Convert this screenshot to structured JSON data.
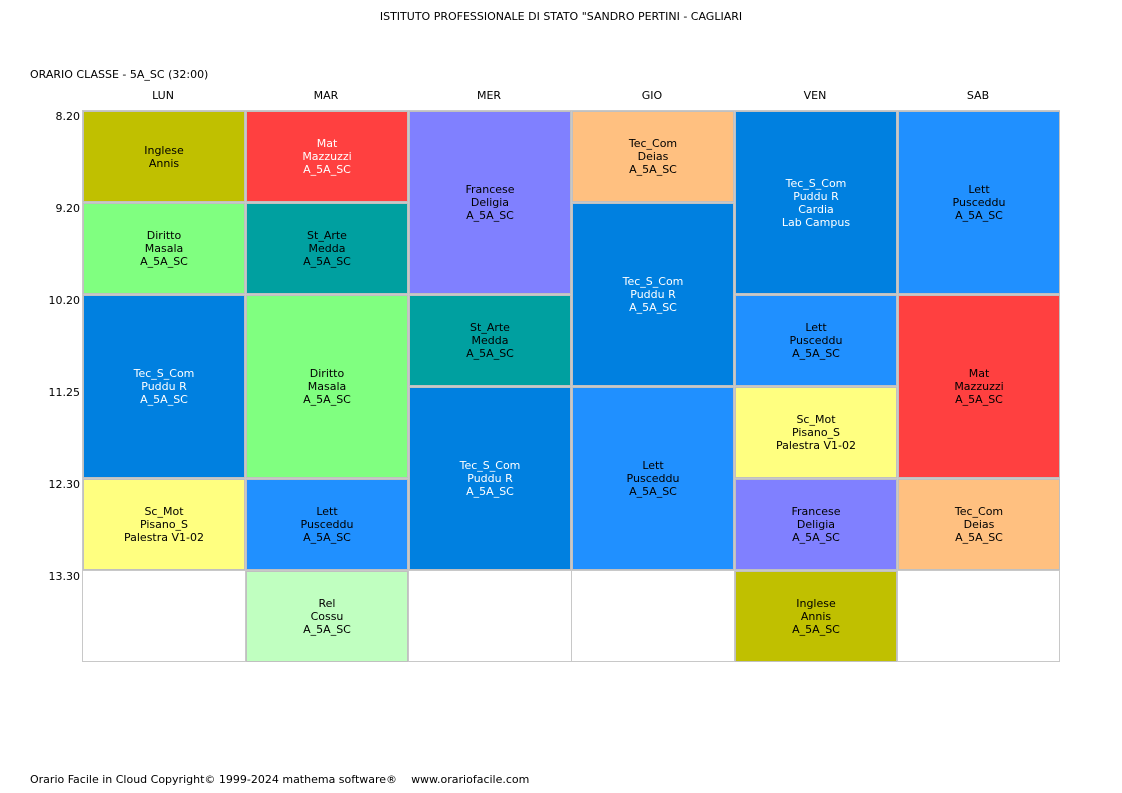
{
  "header": {
    "school": "ISTITUTO PROFESSIONALE DI STATO \"SANDRO PERTINI - CAGLIARI",
    "class_title": "ORARIO CLASSE   -   5A_SC  (32:00)"
  },
  "days": [
    "LUN",
    "MAR",
    "MER",
    "GIO",
    "VEN",
    "SAB"
  ],
  "times": [
    "8.20",
    "9.20",
    "10.20",
    "11.25",
    "12.30",
    "13.30"
  ],
  "colors": {
    "inglese": "#c0c000",
    "mat": "#ff4040",
    "francese": "#8080ff",
    "tec_com": "#ffc080",
    "tec_s_com": "#0080e0",
    "lett": "#2090ff",
    "diritto": "#80ff80",
    "st_arte": "#00a0a0",
    "sc_mot": "#ffff80",
    "rel": "#c0ffc0"
  },
  "lessons": [
    {
      "day": 0,
      "start": 0,
      "len": 1,
      "color": "#c0c000",
      "lines": [
        "Inglese",
        "Annis"
      ]
    },
    {
      "day": 0,
      "start": 1,
      "len": 1,
      "color": "#80ff80",
      "lines": [
        "Diritto",
        "Masala",
        "A_5A_SC"
      ]
    },
    {
      "day": 0,
      "start": 2,
      "len": 2,
      "color": "#0080e0",
      "text_color": "#ffffff",
      "lines": [
        "Tec_S_Com",
        "Puddu R",
        "A_5A_SC"
      ]
    },
    {
      "day": 0,
      "start": 4,
      "len": 1,
      "color": "#ffff80",
      "lines": [
        "Sc_Mot",
        "Pisano_S",
        "Palestra V1-02"
      ]
    },
    {
      "day": 1,
      "start": 0,
      "len": 1,
      "color": "#ff4040",
      "text_color": "#ffffff",
      "lines": [
        "Mat",
        "Mazzuzzi",
        "A_5A_SC"
      ]
    },
    {
      "day": 1,
      "start": 1,
      "len": 1,
      "color": "#00a0a0",
      "lines": [
        "St_Arte",
        "Medda",
        "A_5A_SC"
      ]
    },
    {
      "day": 1,
      "start": 2,
      "len": 2,
      "color": "#80ff80",
      "lines": [
        "Diritto",
        "Masala",
        "A_5A_SC"
      ]
    },
    {
      "day": 1,
      "start": 4,
      "len": 1,
      "color": "#2090ff",
      "lines": [
        "Lett",
        "Pusceddu",
        "A_5A_SC"
      ]
    },
    {
      "day": 1,
      "start": 5,
      "len": 1,
      "color": "#c0ffc0",
      "lines": [
        "Rel",
        "Cossu",
        "A_5A_SC"
      ]
    },
    {
      "day": 2,
      "start": 0,
      "len": 2,
      "color": "#8080ff",
      "lines": [
        "Francese",
        "Deligia",
        "A_5A_SC"
      ]
    },
    {
      "day": 2,
      "start": 2,
      "len": 1,
      "color": "#00a0a0",
      "lines": [
        "St_Arte",
        "Medda",
        "A_5A_SC"
      ]
    },
    {
      "day": 2,
      "start": 3,
      "len": 2,
      "color": "#0080e0",
      "text_color": "#ffffff",
      "lines": [
        "Tec_S_Com",
        "Puddu R",
        "A_5A_SC"
      ]
    },
    {
      "day": 3,
      "start": 0,
      "len": 1,
      "color": "#ffc080",
      "lines": [
        "Tec_Com",
        "Deias",
        "A_5A_SC"
      ]
    },
    {
      "day": 3,
      "start": 1,
      "len": 2,
      "color": "#0080e0",
      "text_color": "#ffffff",
      "lines": [
        "Tec_S_Com",
        "Puddu R",
        "A_5A_SC"
      ]
    },
    {
      "day": 3,
      "start": 3,
      "len": 2,
      "color": "#2090ff",
      "lines": [
        "Lett",
        "Pusceddu",
        "A_5A_SC"
      ]
    },
    {
      "day": 4,
      "start": 0,
      "len": 2,
      "color": "#0080e0",
      "text_color": "#ffffff",
      "lines": [
        "Tec_S_Com",
        "Puddu R",
        "Cardia",
        "Lab Campus"
      ]
    },
    {
      "day": 4,
      "start": 2,
      "len": 1,
      "color": "#2090ff",
      "lines": [
        "Lett",
        "Pusceddu",
        "A_5A_SC"
      ]
    },
    {
      "day": 4,
      "start": 3,
      "len": 1,
      "color": "#ffff80",
      "lines": [
        "Sc_Mot",
        "Pisano_S",
        "Palestra V1-02"
      ]
    },
    {
      "day": 4,
      "start": 4,
      "len": 1,
      "color": "#8080ff",
      "lines": [
        "Francese",
        "Deligia",
        "A_5A_SC"
      ]
    },
    {
      "day": 4,
      "start": 5,
      "len": 1,
      "color": "#c0c000",
      "lines": [
        "Inglese",
        "Annis",
        "A_5A_SC"
      ]
    },
    {
      "day": 5,
      "start": 0,
      "len": 2,
      "color": "#2090ff",
      "lines": [
        "Lett",
        "Pusceddu",
        "A_5A_SC"
      ]
    },
    {
      "day": 5,
      "start": 2,
      "len": 2,
      "color": "#ff4040",
      "lines": [
        "Mat",
        "Mazzuzzi",
        "A_5A_SC"
      ]
    },
    {
      "day": 5,
      "start": 4,
      "len": 1,
      "color": "#ffc080",
      "lines": [
        "Tec_Com",
        "Deias",
        "A_5A_SC"
      ]
    }
  ],
  "footer": {
    "copyright": "Orario Facile in Cloud  Copyright© 1999-2024 mathema software®",
    "website": "www.orariofacile.com"
  }
}
